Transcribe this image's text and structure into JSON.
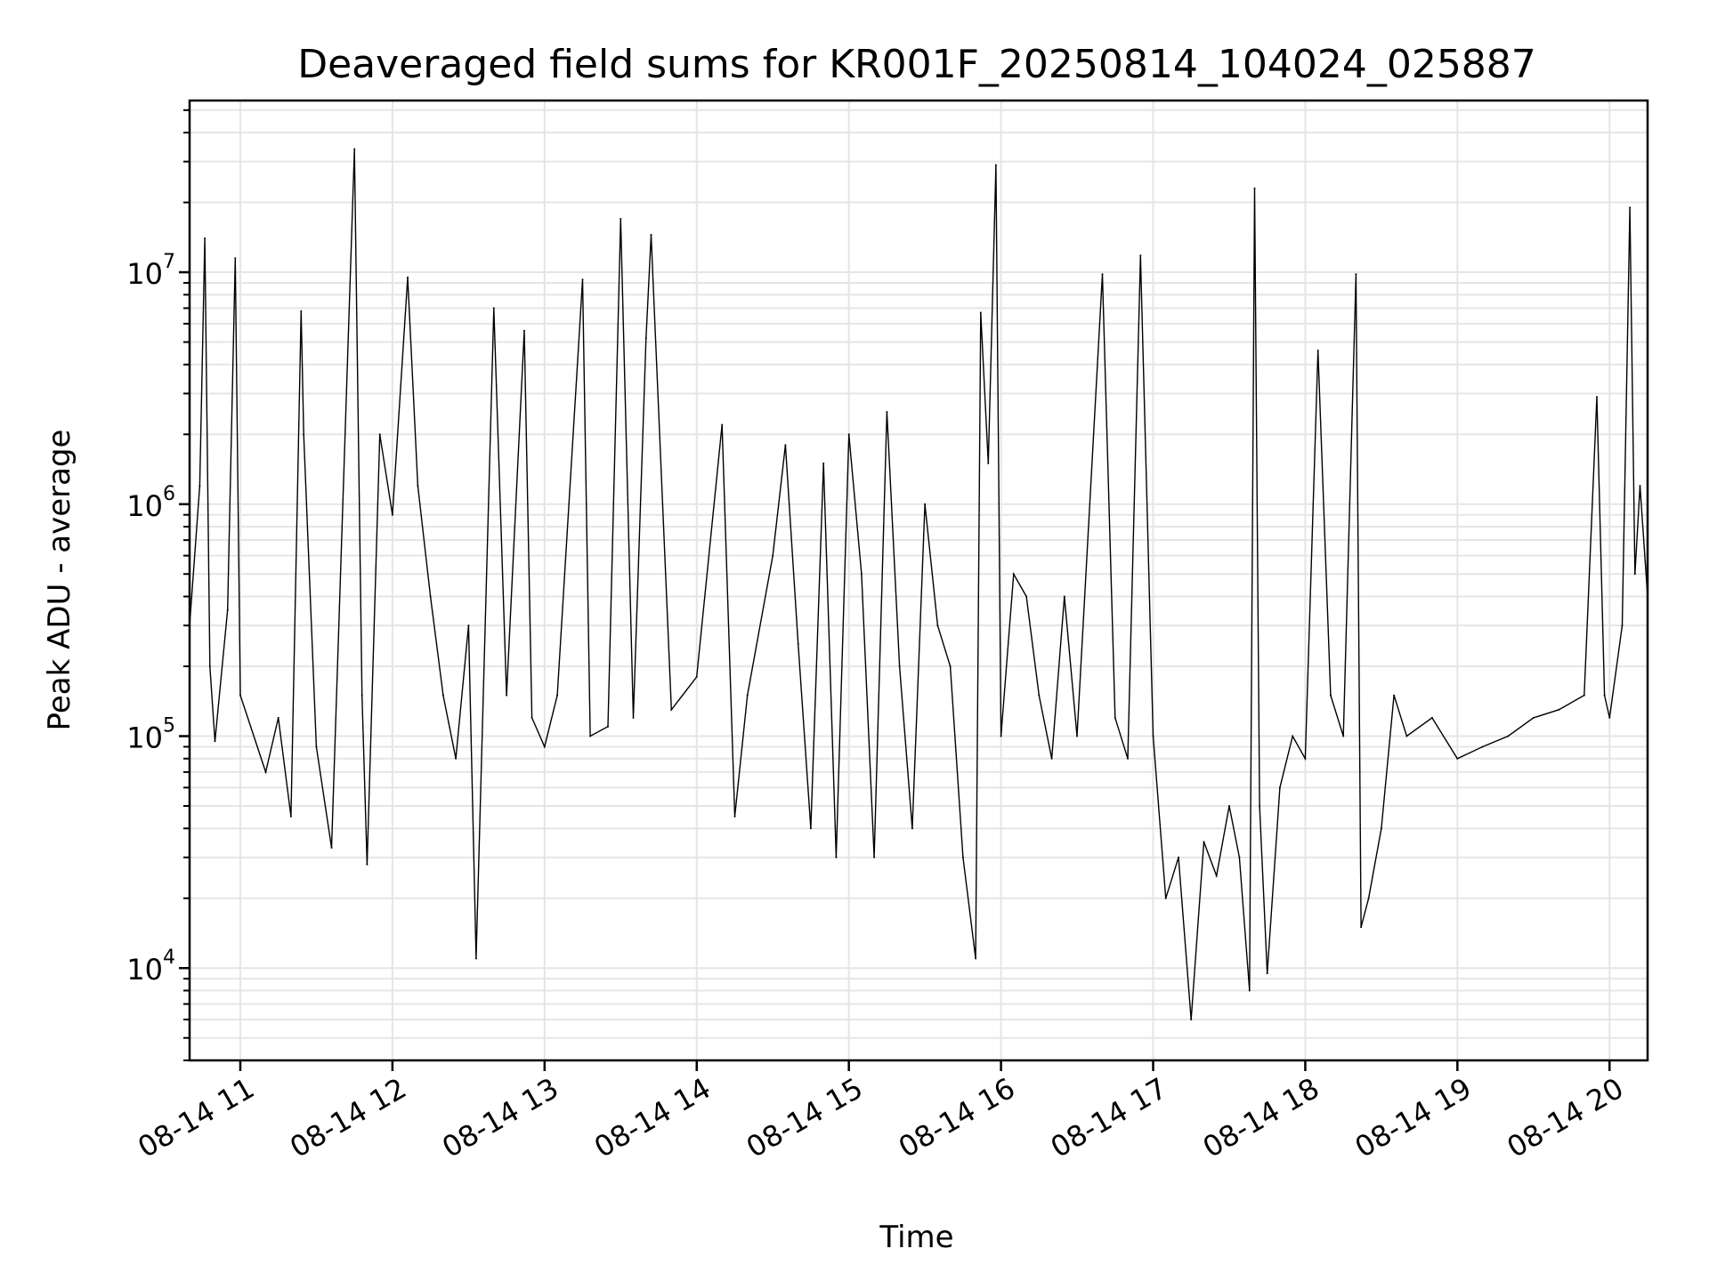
{
  "chart_data": {
    "type": "line",
    "title": "Deaveraged field sums for KR001F_20250814_104024_025887",
    "xlabel": "Time",
    "ylabel": "Peak ADU - average",
    "yscale": "log",
    "ylim": [
      4000,
      55000000
    ],
    "xlim": [
      "2025-08-14 10:40",
      "2025-08-14 20:15"
    ],
    "x_ticks": [
      "08-14 11",
      "08-14 12",
      "08-14 13",
      "08-14 14",
      "08-14 15",
      "08-14 16",
      "08-14 17",
      "08-14 18",
      "08-14 19",
      "08-14 20"
    ],
    "y_ticks": [
      {
        "value": 10000,
        "base": "10",
        "exp": "4"
      },
      {
        "value": 100000,
        "base": "10",
        "exp": "5"
      },
      {
        "value": 1000000,
        "base": "10",
        "exp": "6"
      },
      {
        "value": 10000000,
        "base": "10",
        "exp": "7"
      }
    ],
    "grid": true,
    "line_color": "#000000",
    "grid_color": "#e5e5e5",
    "series": [
      {
        "values": [
          [
            "2025-08-14 10:40",
            300000
          ],
          [
            "2025-08-14 10:44",
            1200000
          ],
          [
            "2025-08-14 10:46",
            14000000
          ],
          [
            "2025-08-14 10:48",
            200000
          ],
          [
            "2025-08-14 10:50",
            95000
          ],
          [
            "2025-08-14 10:55",
            350000
          ],
          [
            "2025-08-14 10:58",
            11500000
          ],
          [
            "2025-08-14 11:00",
            150000
          ],
          [
            "2025-08-14 11:10",
            70000
          ],
          [
            "2025-08-14 11:15",
            120000
          ],
          [
            "2025-08-14 11:20",
            45000
          ],
          [
            "2025-08-14 11:24",
            6800000
          ],
          [
            "2025-08-14 11:25",
            2000000
          ],
          [
            "2025-08-14 11:30",
            90000
          ],
          [
            "2025-08-14 11:36",
            33000
          ],
          [
            "2025-08-14 11:45",
            34000000
          ],
          [
            "2025-08-14 11:48",
            150000
          ],
          [
            "2025-08-14 11:50",
            28000
          ],
          [
            "2025-08-14 11:55",
            2000000
          ],
          [
            "2025-08-14 12:00",
            900000
          ],
          [
            "2025-08-14 12:06",
            9500000
          ],
          [
            "2025-08-14 12:10",
            1200000
          ],
          [
            "2025-08-14 12:15",
            400000
          ],
          [
            "2025-08-14 12:20",
            150000
          ],
          [
            "2025-08-14 12:25",
            80000
          ],
          [
            "2025-08-14 12:30",
            300000
          ],
          [
            "2025-08-14 12:33",
            11000
          ],
          [
            "2025-08-14 12:40",
            7000000
          ],
          [
            "2025-08-14 12:45",
            150000
          ],
          [
            "2025-08-14 12:52",
            5600000
          ],
          [
            "2025-08-14 12:55",
            120000
          ],
          [
            "2025-08-14 13:00",
            90000
          ],
          [
            "2025-08-14 13:05",
            150000
          ],
          [
            "2025-08-14 13:15",
            9300000
          ],
          [
            "2025-08-14 13:18",
            100000
          ],
          [
            "2025-08-14 13:25",
            110000
          ],
          [
            "2025-08-14 13:30",
            17000000
          ],
          [
            "2025-08-14 13:35",
            120000
          ],
          [
            "2025-08-14 13:40",
            5200000
          ],
          [
            "2025-08-14 13:42",
            14500000
          ],
          [
            "2025-08-14 13:50",
            130000
          ],
          [
            "2025-08-14 14:00",
            180000
          ],
          [
            "2025-08-14 14:10",
            2200000
          ],
          [
            "2025-08-14 14:15",
            45000
          ],
          [
            "2025-08-14 14:20",
            150000
          ],
          [
            "2025-08-14 14:30",
            600000
          ],
          [
            "2025-08-14 14:35",
            1800000
          ],
          [
            "2025-08-14 14:40",
            250000
          ],
          [
            "2025-08-14 14:45",
            40000
          ],
          [
            "2025-08-14 14:50",
            1500000
          ],
          [
            "2025-08-14 14:55",
            30000
          ],
          [
            "2025-08-14 15:00",
            2000000
          ],
          [
            "2025-08-14 15:05",
            500000
          ],
          [
            "2025-08-14 15:10",
            30000
          ],
          [
            "2025-08-14 15:15",
            2500000
          ],
          [
            "2025-08-14 15:20",
            200000
          ],
          [
            "2025-08-14 15:25",
            40000
          ],
          [
            "2025-08-14 15:30",
            1000000
          ],
          [
            "2025-08-14 15:35",
            300000
          ],
          [
            "2025-08-14 15:40",
            200000
          ],
          [
            "2025-08-14 15:45",
            30000
          ],
          [
            "2025-08-14 15:50",
            11000
          ],
          [
            "2025-08-14 15:52",
            6700000
          ],
          [
            "2025-08-14 15:55",
            1500000
          ],
          [
            "2025-08-14 15:58",
            29000000
          ],
          [
            "2025-08-14 16:00",
            100000
          ],
          [
            "2025-08-14 16:05",
            500000
          ],
          [
            "2025-08-14 16:10",
            400000
          ],
          [
            "2025-08-14 16:15",
            150000
          ],
          [
            "2025-08-14 16:20",
            80000
          ],
          [
            "2025-08-14 16:25",
            400000
          ],
          [
            "2025-08-14 16:30",
            100000
          ],
          [
            "2025-08-14 16:40",
            9800000
          ],
          [
            "2025-08-14 16:45",
            120000
          ],
          [
            "2025-08-14 16:50",
            80000
          ],
          [
            "2025-08-14 16:55",
            11800000
          ],
          [
            "2025-08-14 17:00",
            100000
          ],
          [
            "2025-08-14 17:05",
            20000
          ],
          [
            "2025-08-14 17:10",
            30000
          ],
          [
            "2025-08-14 17:15",
            6000
          ],
          [
            "2025-08-14 17:20",
            35000
          ],
          [
            "2025-08-14 17:25",
            25000
          ],
          [
            "2025-08-14 17:30",
            50000
          ],
          [
            "2025-08-14 17:34",
            30000
          ],
          [
            "2025-08-14 17:38",
            8000
          ],
          [
            "2025-08-14 17:40",
            23000000
          ],
          [
            "2025-08-14 17:42",
            50000
          ],
          [
            "2025-08-14 17:45",
            9500
          ],
          [
            "2025-08-14 17:50",
            60000
          ],
          [
            "2025-08-14 17:55",
            100000
          ],
          [
            "2025-08-14 18:00",
            80000
          ],
          [
            "2025-08-14 18:05",
            4600000
          ],
          [
            "2025-08-14 18:10",
            150000
          ],
          [
            "2025-08-14 18:15",
            100000
          ],
          [
            "2025-08-14 18:20",
            9800000
          ],
          [
            "2025-08-14 18:22",
            15000
          ],
          [
            "2025-08-14 18:25",
            20000
          ],
          [
            "2025-08-14 18:30",
            40000
          ],
          [
            "2025-08-14 18:35",
            150000
          ],
          [
            "2025-08-14 18:40",
            100000
          ],
          [
            "2025-08-14 18:50",
            120000
          ],
          [
            "2025-08-14 19:00",
            80000
          ],
          [
            "2025-08-14 19:10",
            90000
          ],
          [
            "2025-08-14 19:20",
            100000
          ],
          [
            "2025-08-14 19:30",
            120000
          ],
          [
            "2025-08-14 19:40",
            130000
          ],
          [
            "2025-08-14 19:50",
            150000
          ],
          [
            "2025-08-14 19:55",
            2900000
          ],
          [
            "2025-08-14 19:58",
            150000
          ],
          [
            "2025-08-14 20:00",
            120000
          ],
          [
            "2025-08-14 20:05",
            300000
          ],
          [
            "2025-08-14 20:08",
            19000000
          ],
          [
            "2025-08-14 20:10",
            500000
          ],
          [
            "2025-08-14 20:12",
            1200000
          ],
          [
            "2025-08-14 20:15",
            400000
          ]
        ]
      }
    ]
  }
}
